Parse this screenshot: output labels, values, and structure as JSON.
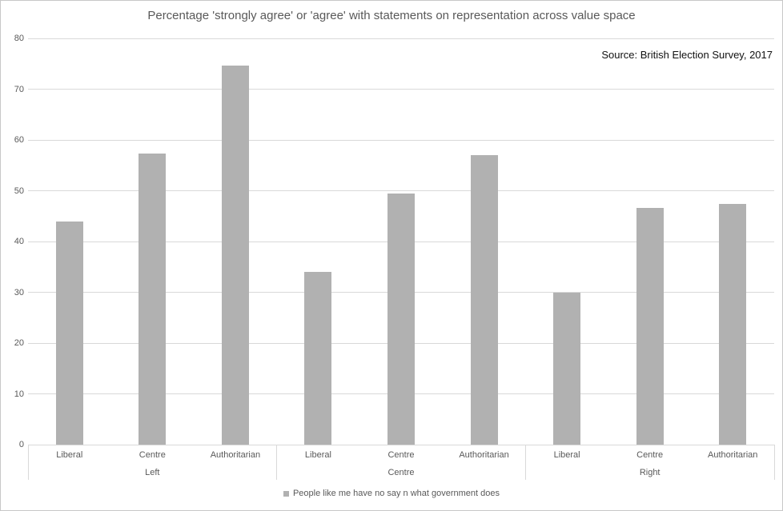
{
  "chart_data": {
    "type": "bar",
    "title": "Percentage 'strongly agree' or 'agree' with statements on representation across value space",
    "annotation": "Source: British Election Survey, 2017",
    "groups": [
      "Left",
      "Centre",
      "Right"
    ],
    "categories_per_group": [
      "Liberal",
      "Centre",
      "Authoritarian"
    ],
    "categories_flat": [
      "Liberal",
      "Centre",
      "Authoritarian",
      "Liberal",
      "Centre",
      "Authoritarian",
      "Liberal",
      "Centre",
      "Authoritarian"
    ],
    "series": [
      {
        "name": "People like me have no say n what government does",
        "values": [
          44,
          57.3,
          74.7,
          34,
          49.4,
          57,
          30,
          46.6,
          47.4
        ]
      }
    ],
    "ylabel": "",
    "xlabel": "",
    "ylim": [
      0,
      80
    ],
    "yticks": [
      0,
      10,
      20,
      30,
      40,
      50,
      60,
      70,
      80
    ],
    "grid": true,
    "legend_position": "bottom",
    "colors": {
      "bar": "#b1b1b1",
      "gridline": "#d9d9d9",
      "axis_text": "#595959",
      "title_text": "#595959",
      "annotation_text": "#111111"
    }
  }
}
